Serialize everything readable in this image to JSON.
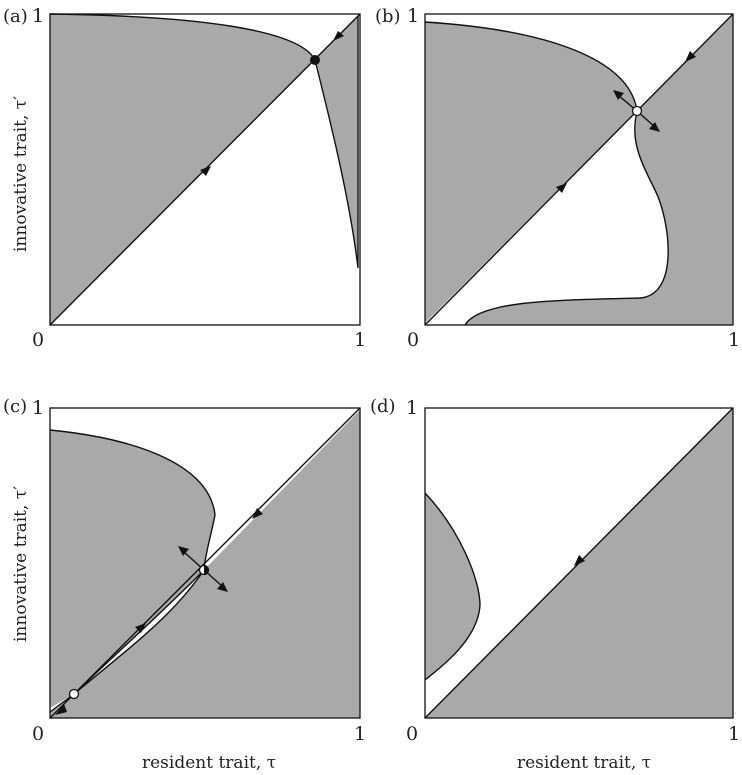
{
  "panels": [
    {
      "label": "(a)",
      "tick_top": "1",
      "tick_origin": "0",
      "tick_right": "1"
    },
    {
      "label": "(b)",
      "tick_top": "1",
      "tick_origin": "0",
      "tick_right": "1"
    },
    {
      "label": "(c)",
      "tick_top": "1",
      "tick_origin": "0",
      "tick_right": "1"
    },
    {
      "label": "(d)",
      "tick_top": "1",
      "tick_origin": "0",
      "tick_right": "1"
    }
  ],
  "axes": {
    "ylabel": "innovative trait, τ′",
    "xlabel": "resident trait, τ"
  },
  "colors": {
    "shade": "#a9a9a9",
    "line": "#111111",
    "background": "#ffffff"
  }
}
